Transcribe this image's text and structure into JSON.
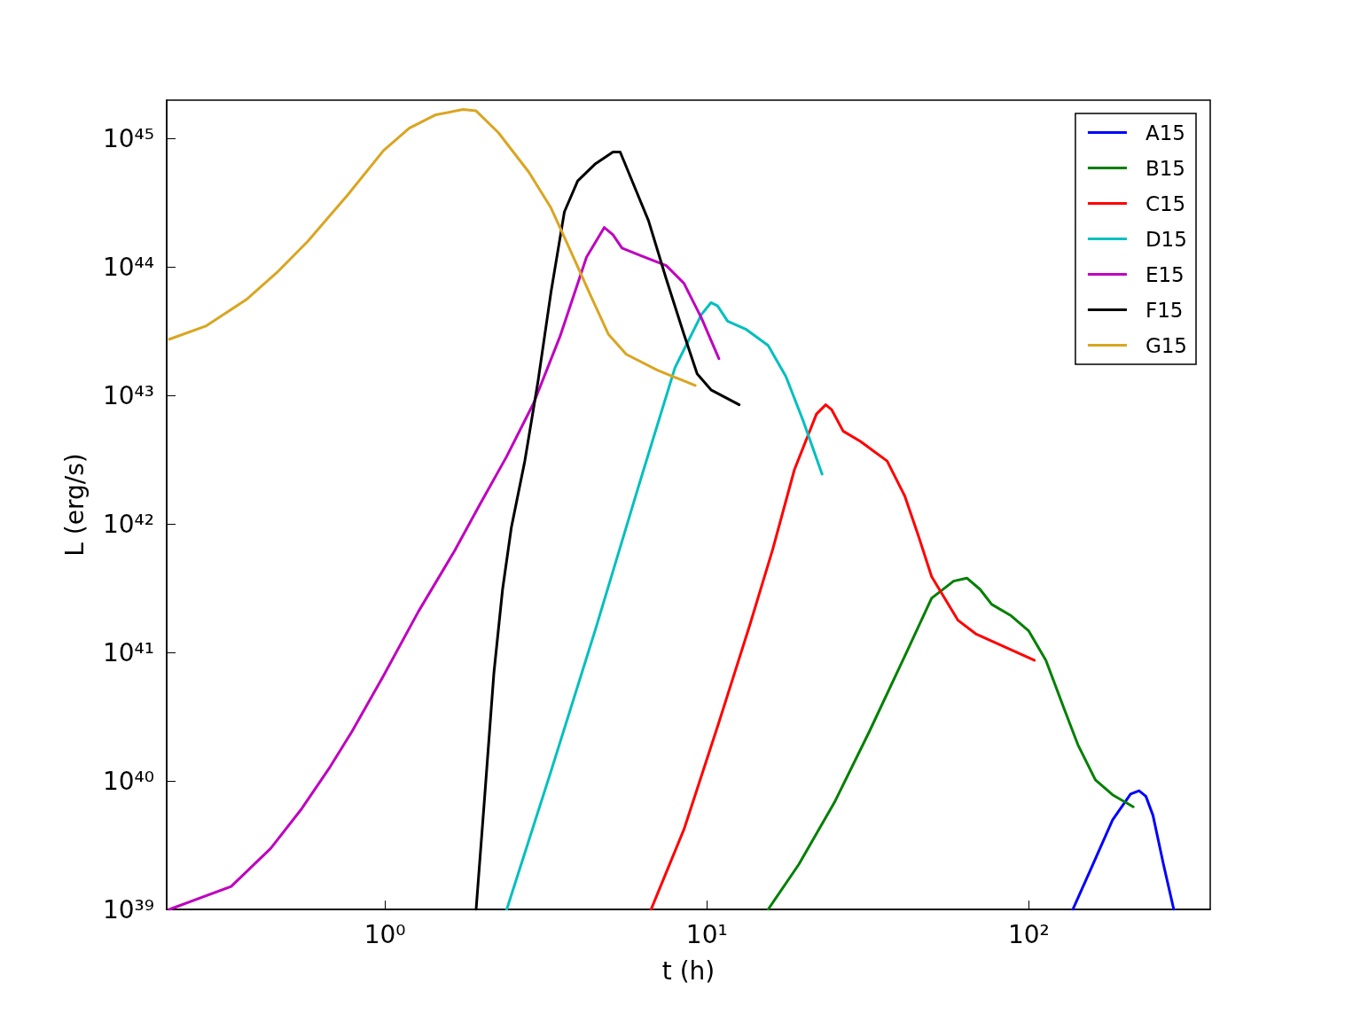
{
  "chart_data": {
    "type": "line",
    "xlabel": "t (h)",
    "ylabel": "L (erg/s)",
    "log": "xy",
    "grid": false,
    "legend": "top right",
    "marker": "none",
    "line_style": "solid",
    "xlim": [
      0.21,
      366
    ],
    "ylim": [
      1e+39,
      2e+45
    ],
    "xticks": [
      {
        "value": 1,
        "label": "10⁰"
      },
      {
        "value": 10,
        "label": "10¹"
      },
      {
        "value": 100,
        "label": "10²"
      }
    ],
    "yticks": [
      {
        "value": 1e+39,
        "label": "10³⁹"
      },
      {
        "value": 1e+40,
        "label": "10⁴⁰"
      },
      {
        "value": 1e+41,
        "label": "10⁴¹"
      },
      {
        "value": 1e+42,
        "label": "10⁴²"
      },
      {
        "value": 1e+43,
        "label": "10⁴³"
      },
      {
        "value": 1e+44,
        "label": "10⁴⁴"
      },
      {
        "value": 1e+45,
        "label": "10⁴⁵"
      }
    ],
    "series": [
      {
        "name": "A15",
        "color": "#0000ff",
        "x": [
          137,
          156,
          182,
          207,
          220,
          231,
          243,
          262,
          282
        ],
        "values": [
          1e+39,
          2.07e+39,
          4.97e+39,
          7.9e+39,
          8.4e+39,
          7.6e+39,
          5.4e+39,
          2.24e+39,
          1e+39
        ]
      },
      {
        "name": "B15",
        "color": "#008000",
        "x": [
          15.5,
          19.3,
          24.9,
          32.0,
          41.2,
          49.9,
          58.4,
          64.2,
          70.6,
          76.7,
          88.2,
          100,
          113,
          129,
          142,
          161,
          182,
          211
        ],
        "values": [
          1e+39,
          2.24e+39,
          6.8e+39,
          2.44e+40,
          9.4e+40,
          2.65e+41,
          3.6e+41,
          3.8e+41,
          3.1e+41,
          2.37e+41,
          1.93e+41,
          1.47e+41,
          8.7e+40,
          3.6e+40,
          1.92e+40,
          1.02e+40,
          7.8e+39,
          6.3e+39
        ]
      },
      {
        "name": "C15",
        "color": "#ff0000",
        "x": [
          6.71,
          8.49,
          10.9,
          13.6,
          16.0,
          18.7,
          21.9,
          23.4,
          24.4,
          26.5,
          30.0,
          36.3,
          41.2,
          45.4,
          49.9,
          60.3,
          68.4,
          104
        ],
        "values": [
          1e+39,
          4.2e+39,
          2.86e+40,
          1.64e+41,
          6.3e+41,
          2.65e+42,
          7.2e+42,
          8.5e+42,
          7.8e+42,
          5.3e+42,
          4.4e+42,
          3.1e+42,
          1.65e+42,
          8.1e+41,
          3.9e+41,
          1.78e+41,
          1.4e+41,
          8.7e+40
        ]
      },
      {
        "name": "D15",
        "color": "#00bfbf",
        "x": [
          2.39,
          3.28,
          4.51,
          6.18,
          7.96,
          9.63,
          10.3,
          10.8,
          11.6,
          13.2,
          15.5,
          17.6,
          19.9,
          22.8
        ],
        "values": [
          1e+39,
          1.19e+40,
          1.52e+41,
          2.09e+42,
          1.65e+43,
          4.3e+43,
          5.3e+43,
          5e+43,
          3.8e+43,
          3.3e+43,
          2.46e+43,
          1.41e+43,
          6.4e+42,
          2.45e+42
        ]
      },
      {
        "name": "E15",
        "color": "#bf00bf",
        "x": [
          0.214,
          0.333,
          0.442,
          0.552,
          0.676,
          0.791,
          0.987,
          1.27,
          1.64,
          1.98,
          2.39,
          2.9,
          3.5,
          4.23,
          4.8,
          5.11,
          5.45,
          6.18,
          7.48,
          8.49,
          9.63,
          10.9
        ],
        "values": [
          1e+39,
          1.51e+39,
          2.99e+39,
          6.1e+39,
          1.29e+40,
          2.44e+40,
          6.5e+40,
          2.08e+41,
          6.1e+41,
          1.45e+42,
          3.37e+42,
          8.8e+42,
          2.9e+43,
          1.2e+44,
          2.04e+44,
          1.79e+44,
          1.41e+44,
          1.24e+44,
          1.03e+44,
          7.5e+43,
          4e+43,
          1.94e+43
        ]
      },
      {
        "name": "F15",
        "color": "#000000",
        "x": [
          1.92,
          2.04,
          2.18,
          2.32,
          2.47,
          2.72,
          2.99,
          3.28,
          3.61,
          3.97,
          4.51,
          5.11,
          5.38,
          5.8,
          6.59,
          7.48,
          8.49,
          9.33,
          10.3,
          12.6
        ],
        "values": [
          1e+39,
          7.4e+39,
          6.9e+40,
          3.1e+41,
          9.4e+41,
          3.1e+42,
          1.3e+43,
          6.4e+43,
          2.7e+44,
          4.7e+44,
          6.4e+44,
          7.9e+44,
          7.9e+44,
          5e+44,
          2.3e+44,
          8.1e+43,
          3e+43,
          1.48e+43,
          1.11e+43,
          8.5e+42
        ]
      },
      {
        "name": "G15",
        "color": "#daa520",
        "x": [
          0.214,
          0.279,
          0.371,
          0.462,
          0.577,
          0.767,
          0.99,
          1.19,
          1.44,
          1.75,
          1.92,
          2.25,
          2.8,
          3.28,
          3.85,
          4.37,
          4.95,
          5.62,
          7.02,
          9.2
        ],
        "values": [
          2.75e+43,
          3.5e+43,
          5.6e+43,
          9.1e+43,
          1.6e+44,
          3.67e+44,
          8.1e+44,
          1.21e+45,
          1.54e+45,
          1.69e+45,
          1.65e+45,
          1.12e+45,
          5.5e+44,
          2.9e+44,
          1.2e+44,
          5.9e+43,
          3e+43,
          2.1e+43,
          1.58e+43,
          1.2e+43
        ]
      }
    ]
  }
}
